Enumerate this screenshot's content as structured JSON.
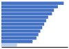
{
  "chart_data": {
    "type": "bar",
    "orientation": "horizontal",
    "categories": [
      null,
      null,
      null,
      null,
      null,
      null,
      null,
      null,
      null,
      null,
      null,
      null,
      null
    ],
    "values": [
      32,
      29,
      27,
      26,
      24,
      23,
      22,
      21,
      20,
      19,
      18,
      16,
      8
    ],
    "colors": [
      "#4472c4",
      "#4472c4",
      "#4472c4",
      "#4472c4",
      "#4472c4",
      "#4472c4",
      "#4472c4",
      "#4472c4",
      "#4472c4",
      "#4472c4",
      "#4472c4",
      "#4472c4",
      "#b8d0ea"
    ],
    "xlim": [
      0,
      34
    ],
    "tick_labels": false,
    "grid": false
  }
}
